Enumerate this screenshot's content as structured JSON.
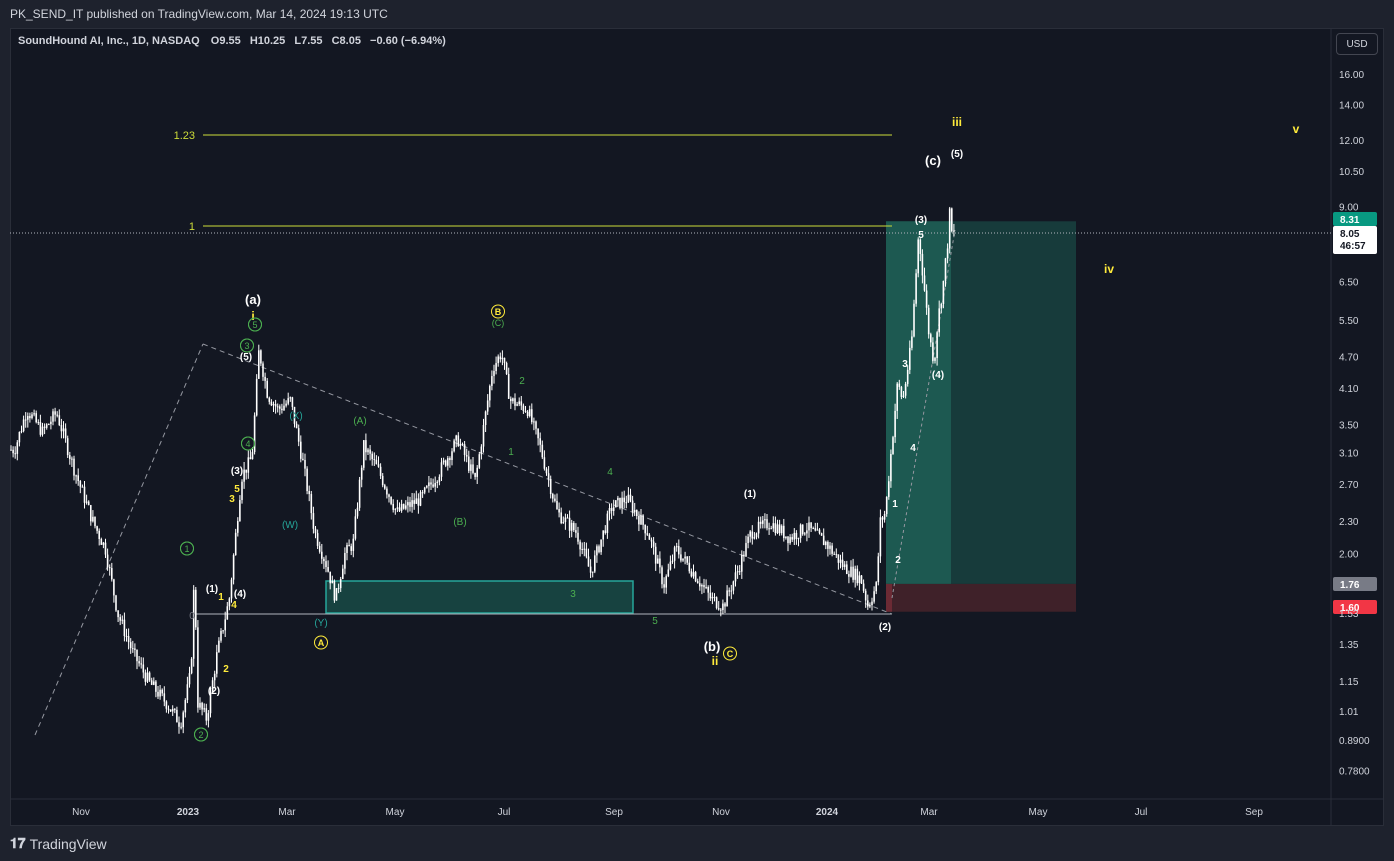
{
  "header": {
    "published": "PK_SEND_IT published on TradingView.com, Mar 14, 2024 19:13 UTC"
  },
  "legend": {
    "symbol": "SoundHound AI, Inc., 1D, NASDAQ",
    "o_label": "O",
    "o": "9.55",
    "h_label": "H",
    "h": "10.25",
    "l_label": "L",
    "l": "7.55",
    "c_label": "C",
    "c": "8.05",
    "change": "−0.60 (−6.94%)"
  },
  "currency": "USD",
  "footer": {
    "brand": "TradingView"
  },
  "colors": {
    "background": "#131722",
    "frame": "#1e222d",
    "candle": "#ffffff",
    "fib_line": "#cddc39",
    "wave_yellow": "#ffeb3b",
    "wave_green": "#4caf50",
    "wave_teal": "#26a69a",
    "profit_zone": "#173b3b",
    "loss_zone": "#3f2129",
    "last_price_bg": "#ffffff",
    "target_badge": "#089981",
    "stop_badge": "#f23645",
    "entry_badge": "#787b86"
  },
  "chart_data": {
    "type": "candlestick",
    "scale": "log",
    "grid": false,
    "x_ticks": [
      "Nov",
      "2023",
      "Mar",
      "May",
      "Jul",
      "Sep",
      "Nov",
      "2024",
      "Mar",
      "May",
      "Jul",
      "Sep"
    ],
    "y_ticks": [
      "16.00",
      "14.00",
      "12.00",
      "10.50",
      "9.00",
      "6.50",
      "5.50",
      "4.70",
      "4.10",
      "3.50",
      "3.10",
      "2.70",
      "2.30",
      "2.00",
      "1.35",
      "1.15",
      "1.01",
      "0.8900",
      "0.7800"
    ],
    "ylim": [
      0.72,
      18.5
    ],
    "price_labels": {
      "target": "8.31",
      "last": "8.05",
      "countdown": "46:57",
      "entry": "1.76",
      "stop": "1.60",
      "hidden_level": "1.53"
    },
    "fib_levels": [
      {
        "label": "1.23",
        "value": 12.55
      },
      {
        "label": "1",
        "value": 8.5
      }
    ],
    "wave_labels": [
      {
        "text": "(a)",
        "color": "white"
      },
      {
        "text": "i",
        "color": "yellow"
      },
      {
        "text": "(c)",
        "color": "white"
      },
      {
        "text": "(5)",
        "color": "white"
      },
      {
        "text": "iii",
        "color": "yellow"
      },
      {
        "text": "v",
        "color": "yellow"
      },
      {
        "text": "iv",
        "color": "yellow"
      },
      {
        "text": "(b)",
        "color": "white"
      },
      {
        "text": "ii",
        "color": "yellow"
      },
      {
        "text": "C",
        "color": "yellow",
        "circled": true
      },
      {
        "text": "A",
        "color": "yellow",
        "circled": true
      },
      {
        "text": "B",
        "color": "yellow",
        "circled": true
      },
      {
        "text": "(C)",
        "color": "green"
      },
      {
        "text": "(A)",
        "color": "green"
      },
      {
        "text": "(B)",
        "color": "green"
      },
      {
        "text": "(X)",
        "color": "teal"
      },
      {
        "text": "(W)",
        "color": "teal"
      },
      {
        "text": "(Y)",
        "color": "teal"
      },
      {
        "text": "1",
        "color": "green",
        "circled": true
      },
      {
        "text": "2",
        "color": "green",
        "circled": true
      },
      {
        "text": "3",
        "color": "green",
        "circled": true
      },
      {
        "text": "4",
        "color": "green",
        "circled": true
      },
      {
        "text": "5",
        "color": "green",
        "circled": true
      },
      {
        "text": "(1)",
        "color": "white"
      },
      {
        "text": "(2)",
        "color": "white"
      },
      {
        "text": "(3)",
        "color": "white"
      },
      {
        "text": "(4)",
        "color": "white"
      },
      {
        "text": "(5)",
        "color": "white"
      },
      {
        "text": "(3)",
        "color": "white"
      },
      {
        "text": "(4)",
        "color": "white"
      },
      {
        "text": "(1)",
        "color": "white"
      },
      {
        "text": "(2)",
        "color": "white"
      },
      {
        "text": "1",
        "color": "yellow"
      },
      {
        "text": "2",
        "color": "yellow"
      },
      {
        "text": "3",
        "color": "yellow"
      },
      {
        "text": "4",
        "color": "yellow"
      },
      {
        "text": "5",
        "color": "yellow"
      },
      {
        "text": "1",
        "color": "green"
      },
      {
        "text": "2",
        "color": "green"
      },
      {
        "text": "3",
        "color": "green"
      },
      {
        "text": "4",
        "color": "green"
      },
      {
        "text": "5",
        "color": "green"
      },
      {
        "text": "1",
        "color": "white"
      },
      {
        "text": "2",
        "color": "white"
      },
      {
        "text": "3",
        "color": "white"
      },
      {
        "text": "4",
        "color": "white"
      },
      {
        "text": "5",
        "color": "white"
      }
    ],
    "price_path": [
      [
        "2022-09-24",
        3.15
      ],
      [
        "2022-10-01",
        3.75
      ],
      [
        "2022-10-10",
        3.4
      ],
      [
        "2022-10-18",
        3.7
      ],
      [
        "2022-10-28",
        2.9
      ],
      [
        "2022-11-08",
        2.3
      ],
      [
        "2022-11-15",
        2.05
      ],
      [
        "2022-11-22",
        1.55
      ],
      [
        "2022-12-01",
        1.3
      ],
      [
        "2022-12-10",
        1.15
      ],
      [
        "2022-12-20",
        1.05
      ],
      [
        "2022-12-28",
        0.96
      ],
      [
        "2023-01-03",
        1.2
      ],
      [
        "2023-01-05",
        1.85
      ],
      [
        "2023-01-07",
        1.05
      ],
      [
        "2023-01-12",
        0.98
      ],
      [
        "2023-01-18",
        1.3
      ],
      [
        "2023-01-25",
        1.65
      ],
      [
        "2023-02-01",
        2.8
      ],
      [
        "2023-02-07",
        3.05
      ],
      [
        "2023-02-11",
        4.85
      ],
      [
        "2023-02-16",
        4.0
      ],
      [
        "2023-02-22",
        3.75
      ],
      [
        "2023-03-01",
        3.9
      ],
      [
        "2023-03-08",
        3.0
      ],
      [
        "2023-03-15",
        2.2
      ],
      [
        "2023-03-22",
        1.9
      ],
      [
        "2023-03-27",
        1.65
      ],
      [
        "2023-04-01",
        2.0
      ],
      [
        "2023-04-06",
        2.1
      ],
      [
        "2023-04-12",
        3.2
      ],
      [
        "2023-04-20",
        2.9
      ],
      [
        "2023-05-01",
        2.4
      ],
      [
        "2023-05-15",
        2.55
      ],
      [
        "2023-05-25",
        2.85
      ],
      [
        "2023-06-05",
        3.3
      ],
      [
        "2023-06-15",
        2.75
      ],
      [
        "2023-06-25",
        4.5
      ],
      [
        "2023-06-30",
        4.8
      ],
      [
        "2023-07-05",
        3.9
      ],
      [
        "2023-07-15",
        3.75
      ],
      [
        "2023-07-22",
        3.2
      ],
      [
        "2023-08-01",
        2.4
      ],
      [
        "2023-08-12",
        2.2
      ],
      [
        "2023-08-20",
        1.85
      ],
      [
        "2023-09-01",
        2.45
      ],
      [
        "2023-09-10",
        2.55
      ],
      [
        "2023-09-22",
        2.2
      ],
      [
        "2023-10-01",
        1.75
      ],
      [
        "2023-10-08",
        2.05
      ],
      [
        "2023-10-18",
        1.85
      ],
      [
        "2023-10-28",
        1.65
      ],
      [
        "2023-11-04",
        1.6
      ],
      [
        "2023-11-12",
        1.85
      ],
      [
        "2023-11-20",
        2.2
      ],
      [
        "2023-12-01",
        2.3
      ],
      [
        "2023-12-12",
        2.15
      ],
      [
        "2023-12-22",
        2.25
      ],
      [
        "2024-01-02",
        2.1
      ],
      [
        "2024-01-12",
        1.9
      ],
      [
        "2024-01-22",
        1.8
      ],
      [
        "2024-01-26",
        1.6
      ],
      [
        "2024-01-31",
        1.75
      ],
      [
        "2024-02-02",
        2.3
      ],
      [
        "2024-02-05",
        2.4
      ],
      [
        "2024-02-09",
        3.3
      ],
      [
        "2024-02-12",
        4.2
      ],
      [
        "2024-02-15",
        3.9
      ],
      [
        "2024-02-20",
        5.0
      ],
      [
        "2024-02-24",
        8.0
      ],
      [
        "2024-02-27",
        6.5
      ],
      [
        "2024-03-01",
        5.2
      ],
      [
        "2024-03-04",
        4.6
      ],
      [
        "2024-03-06",
        5.5
      ],
      [
        "2024-03-09",
        6.4
      ],
      [
        "2024-03-12",
        7.9
      ],
      [
        "2024-03-14",
        10.0
      ],
      [
        "2024-03-14",
        8.05
      ]
    ]
  }
}
